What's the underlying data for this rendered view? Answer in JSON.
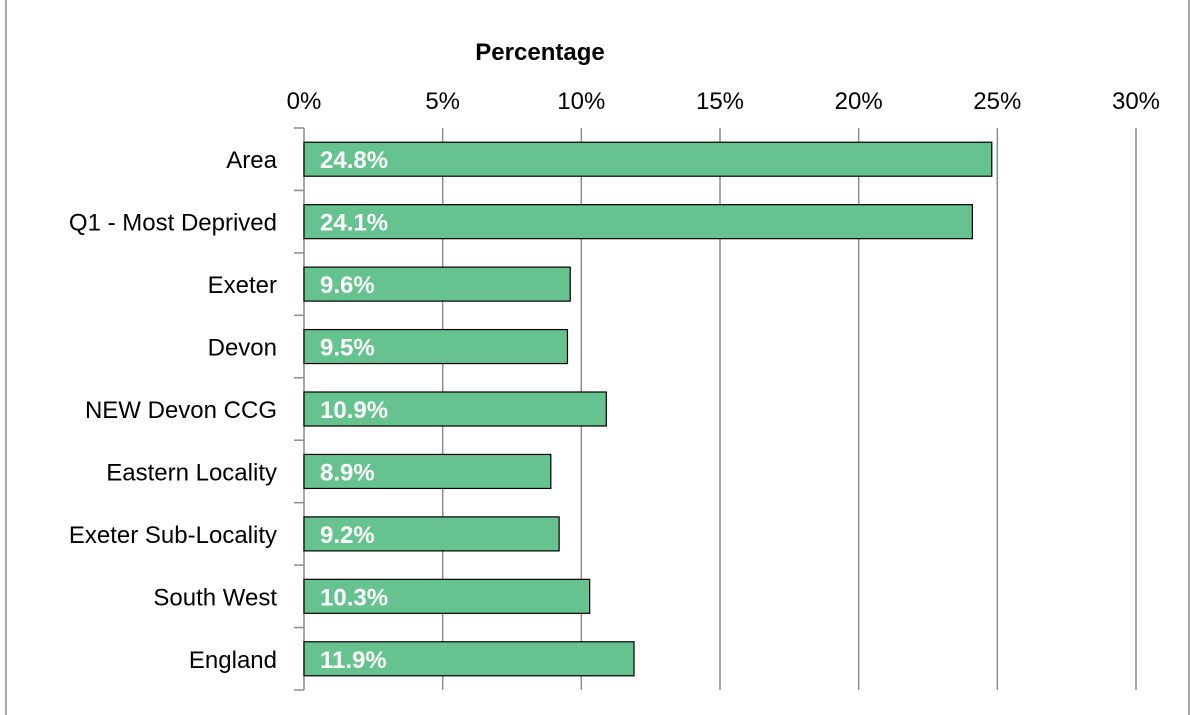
{
  "chart_data": {
    "type": "bar",
    "orientation": "horizontal",
    "title": "",
    "xlabel": "Percentage",
    "xlabel_position": "top",
    "ylabel": "",
    "categories": [
      "Area",
      "Q1 - Most Deprived",
      "Exeter",
      "Devon",
      "NEW Devon CCG",
      "Eastern Locality",
      "Exeter Sub-Locality",
      "South West",
      "England"
    ],
    "values": [
      24.8,
      24.1,
      9.6,
      9.5,
      10.9,
      8.9,
      9.2,
      10.3,
      11.9
    ],
    "data_labels": [
      "24.8%",
      "24.1%",
      "9.6%",
      "9.5%",
      "10.9%",
      "8.9%",
      "9.2%",
      "10.3%",
      "11.9%"
    ],
    "x_ticks": [
      0,
      5,
      10,
      15,
      20,
      25,
      30
    ],
    "x_tick_labels": [
      "0%",
      "5%",
      "10%",
      "15%",
      "20%",
      "25%",
      "30%"
    ],
    "xlim": [
      0,
      30
    ],
    "grid": "vertical",
    "legend": "none",
    "colors": {
      "bar_fill": "#66c28e",
      "bar_stroke": "#000000",
      "gridline": "#8c8c8c",
      "frame": "#8c8c8c",
      "data_label_text": "#ffffff"
    }
  }
}
